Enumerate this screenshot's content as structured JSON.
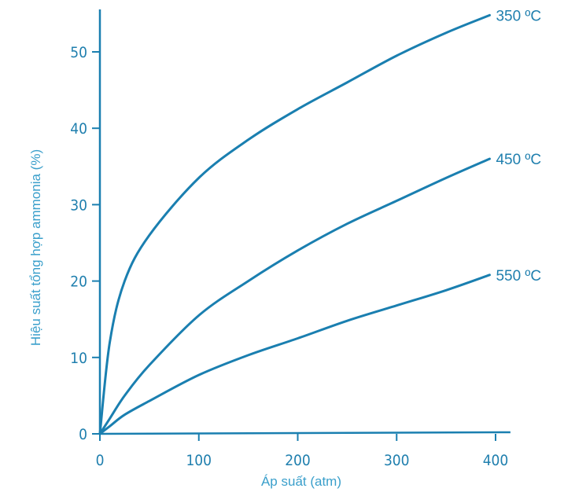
{
  "chart_data": {
    "type": "line",
    "title": "",
    "xlabel": "Áp suất (atm)",
    "ylabel": "Hiệu suất tổng hợp ammonia (%)",
    "xlim": [
      0,
      415
    ],
    "ylim": [
      0,
      55
    ],
    "xticks": [
      "0",
      "100",
      "200",
      "300",
      "400"
    ],
    "yticks": [
      "0",
      "10",
      "20",
      "30",
      "40",
      "50"
    ],
    "grid": false,
    "line_color": "#1a7fb0",
    "x": [
      0,
      10,
      25,
      50,
      100,
      150,
      200,
      250,
      300,
      350,
      394
    ],
    "series": [
      {
        "name": "350 ºC",
        "values": [
          0,
          12,
          20,
          26,
          33.5,
          38.5,
          42.5,
          46,
          49.5,
          52.5,
          54.8
        ]
      },
      {
        "name": "450 ºC",
        "values": [
          0,
          2,
          5,
          9,
          15.5,
          20,
          24,
          27.5,
          30.5,
          33.5,
          36
        ]
      },
      {
        "name": "550 ºC",
        "values": [
          0,
          1,
          2.5,
          4.3,
          7.7,
          10.3,
          12.5,
          14.8,
          16.8,
          18.8,
          20.8
        ]
      }
    ]
  }
}
